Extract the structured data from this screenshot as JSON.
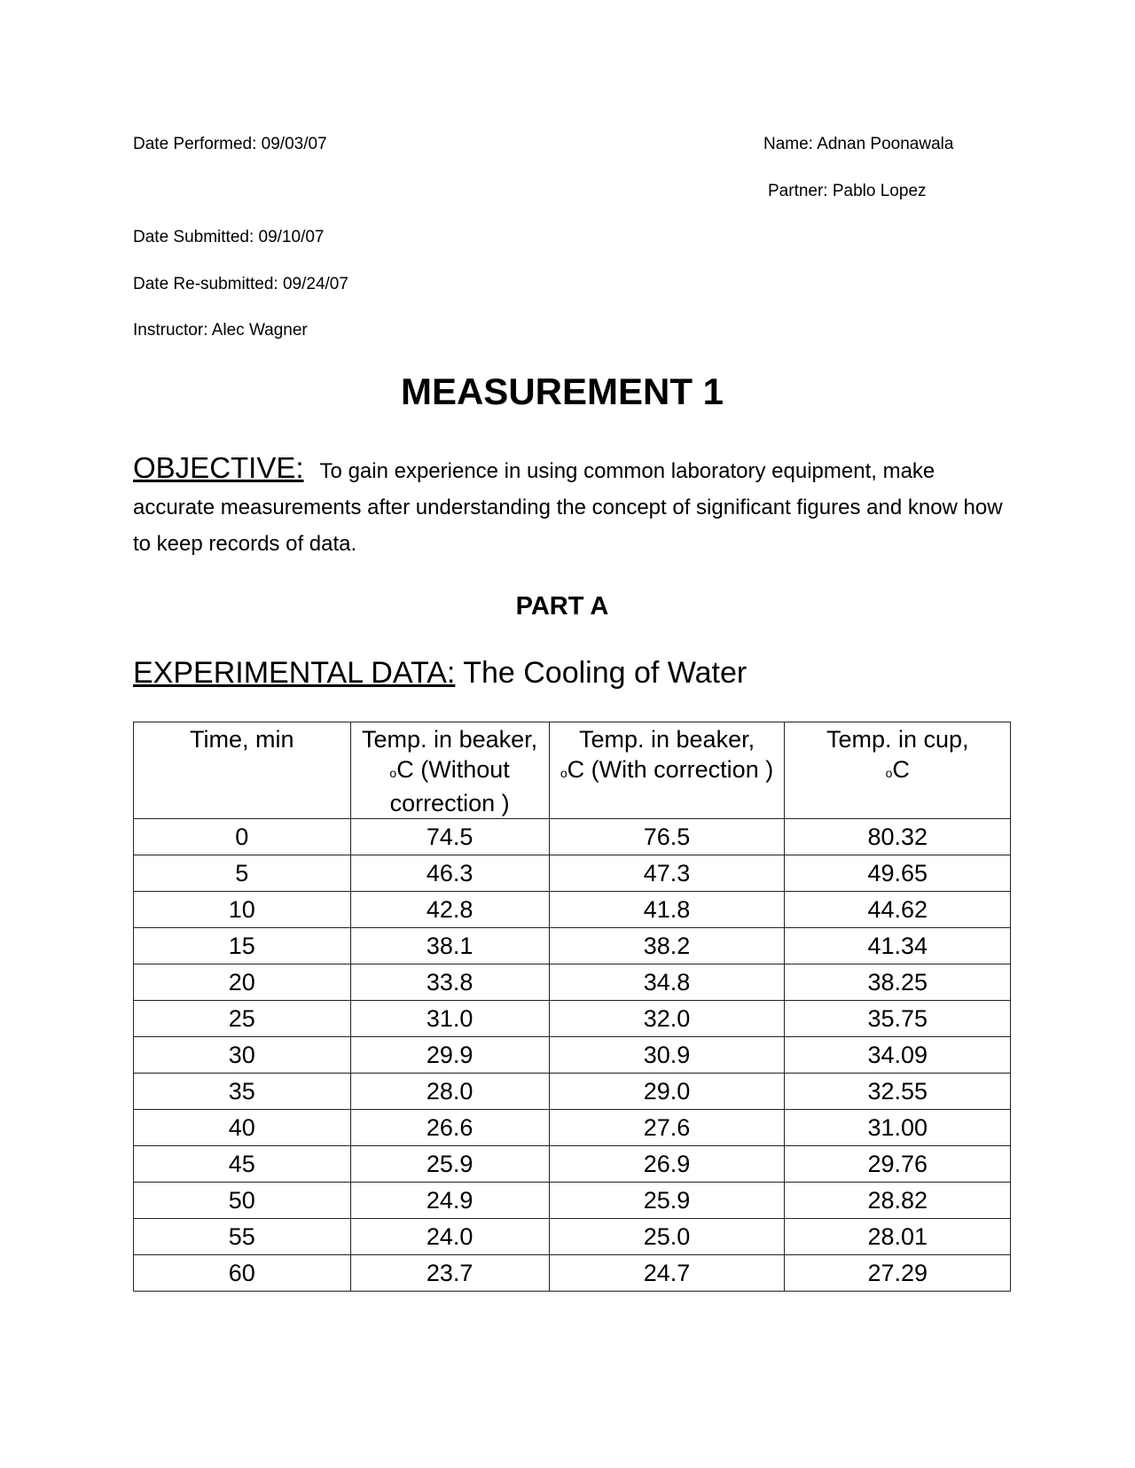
{
  "header": {
    "date_performed": "Date Performed:  09/03/07",
    "name": "Name: Adnan Poonawala",
    "partner": "Partner: Pablo Lopez",
    "date_submitted": "Date Submitted:  09/10/07",
    "date_resubmitted": "Date Re-submitted:  09/24/07",
    "instructor": "Instructor:  Alec Wagner"
  },
  "title": "MEASUREMENT 1",
  "objective": {
    "label": "OBJECTIVE:",
    "text": "To gain experience in using common laboratory equipment, make accurate measurements after understanding the concept of significant figures and know how to keep records of data."
  },
  "part": "PART A",
  "experimental": {
    "label": "EXPERIMENTAL DATA:",
    "text": " The Cooling of Water"
  },
  "table": {
    "headers": [
      "Time, min",
      "Temp. in beaker, o C (Without correction )",
      "Temp. in beaker, o C (With correction )",
      "Temp. in cup, o C"
    ],
    "rows": [
      [
        "0",
        "74.5",
        "76.5",
        "80.32"
      ],
      [
        "5",
        "46.3",
        "47.3",
        "49.65"
      ],
      [
        "10",
        "42.8",
        "41.8",
        "44.62"
      ],
      [
        "15",
        "38.1",
        "38.2",
        "41.34"
      ],
      [
        "20",
        "33.8",
        "34.8",
        "38.25"
      ],
      [
        "25",
        "31.0",
        "32.0",
        "35.75"
      ],
      [
        "30",
        "29.9",
        "30.9",
        "34.09"
      ],
      [
        "35",
        "28.0",
        "29.0",
        "32.55"
      ],
      [
        "40",
        "26.6",
        "27.6",
        "31.00"
      ],
      [
        "45",
        "25.9",
        "26.9",
        "29.76"
      ],
      [
        "50",
        "24.9",
        "25.9",
        "28.82"
      ],
      [
        "55",
        "24.0",
        "25.0",
        "28.01"
      ],
      [
        "60",
        "23.7",
        "24.7",
        "27.29"
      ]
    ]
  }
}
